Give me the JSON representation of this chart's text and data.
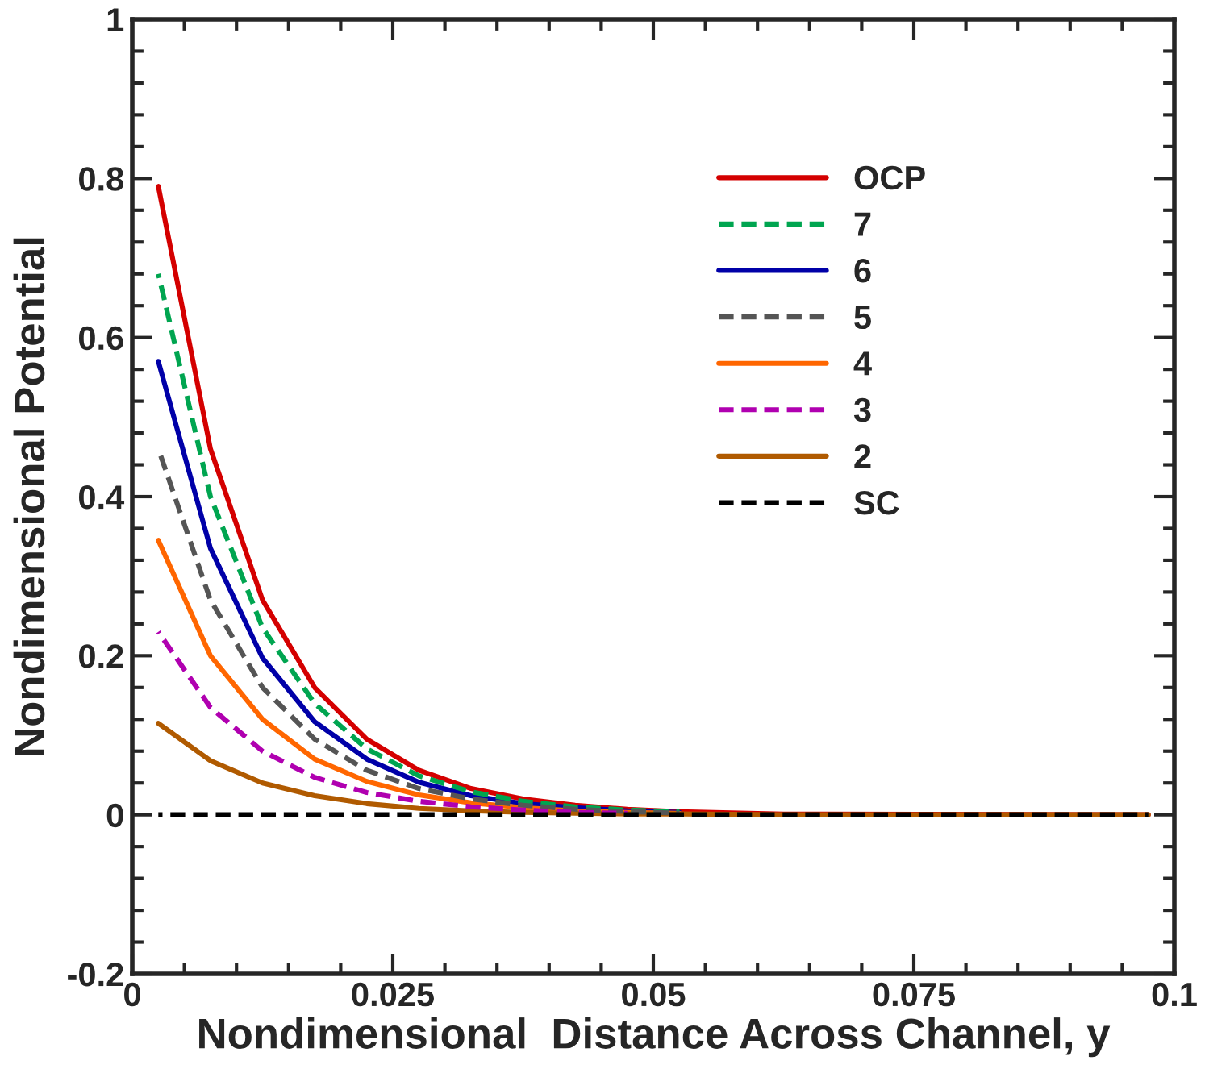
{
  "chart_data": {
    "type": "line",
    "xlabel": "Nondimensional  Distance Across Channel, y",
    "ylabel": "Nondimensional Potential",
    "x": [
      0.0025,
      0.0075,
      0.0125,
      0.0175,
      0.0225,
      0.0275,
      0.0325,
      0.0375,
      0.0425,
      0.0475,
      0.0525,
      0.0625,
      0.0975
    ],
    "series": [
      {
        "name": "OCP",
        "color": "#d40000",
        "line_style": "solid",
        "values": [
          0.79,
          0.46,
          0.27,
          0.16,
          0.095,
          0.056,
          0.033,
          0.02,
          0.012,
          0.007,
          0.004,
          0.001,
          0
        ]
      },
      {
        "name": "7",
        "color": "#00a550",
        "line_style": "dashed",
        "values": [
          0.68,
          0.4,
          0.235,
          0.14,
          0.083,
          0.049,
          0.029,
          0.017,
          0.01,
          0.006,
          0.004,
          null,
          null
        ]
      },
      {
        "name": "6",
        "color": "#0000a8",
        "line_style": "solid",
        "values": [
          0.57,
          0.335,
          0.197,
          0.117,
          0.07,
          0.041,
          0.024,
          0.014,
          0.009,
          0.005,
          0.003,
          null,
          null
        ]
      },
      {
        "name": "5",
        "color": "#555555",
        "line_style": "dashed",
        "values": [
          0.46,
          0.27,
          0.16,
          0.095,
          0.056,
          0.033,
          0.02,
          0.012,
          0.007,
          0.004,
          0.002,
          null,
          null
        ]
      },
      {
        "name": "4",
        "color": "#ff6600",
        "line_style": "solid",
        "values": [
          0.345,
          0.2,
          0.12,
          0.07,
          0.042,
          0.025,
          0.015,
          0.009,
          0.005,
          0.003,
          0.002,
          null,
          null
        ]
      },
      {
        "name": "3",
        "color": "#b000b0",
        "line_style": "dashed",
        "values": [
          0.23,
          0.135,
          0.08,
          0.047,
          0.028,
          0.017,
          0.01,
          0.006,
          0.003,
          0.002,
          null,
          null,
          null
        ]
      },
      {
        "name": "2",
        "color": "#b05a00",
        "line_style": "solid",
        "values": [
          0.115,
          0.068,
          0.04,
          0.024,
          0.014,
          0.008,
          0.005,
          0.003,
          0.002,
          0.001,
          0.001,
          0,
          0
        ]
      },
      {
        "name": "SC",
        "color": "#000000",
        "line_style": "dashed",
        "values": [
          0,
          0,
          0,
          0,
          0,
          0,
          0,
          0,
          0,
          0,
          0,
          0,
          0
        ]
      }
    ],
    "xlim": [
      0,
      0.1
    ],
    "xticks": [
      0,
      0.025,
      0.05,
      0.075,
      0.1
    ],
    "ylim": [
      -0.2,
      1
    ],
    "yticks": [
      -0.2,
      0,
      0.2,
      0.4,
      0.6,
      0.8,
      1
    ],
    "grid": false,
    "legend": "top right"
  }
}
